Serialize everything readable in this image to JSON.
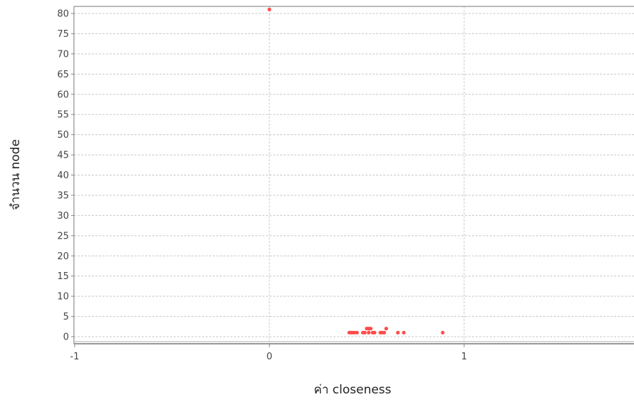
{
  "chart_data": {
    "type": "scatter",
    "title": "",
    "xlabel": "ค่า closeness",
    "ylabel": "จำนวน node",
    "xlim": [
      -1,
      1.85
    ],
    "ylim": [
      -1,
      82
    ],
    "x_ticks": [
      -1,
      0,
      1
    ],
    "x_tick_labels": [
      "-1",
      "0",
      "1"
    ],
    "y_ticks": [
      0,
      5,
      10,
      15,
      20,
      25,
      30,
      35,
      40,
      45,
      50,
      55,
      60,
      65,
      70,
      75,
      80
    ],
    "y_tick_labels": [
      "0",
      "5",
      "10",
      "15",
      "20",
      "25",
      "30",
      "35",
      "40",
      "45",
      "50",
      "55",
      "60",
      "65",
      "70",
      "75",
      "80"
    ],
    "grid": true,
    "legend": "none",
    "colors": {
      "points": "#ff4b4b",
      "grid": "#c8c8c8",
      "axis": "#888888",
      "frame": "#777777"
    },
    "series": [
      {
        "points": [
          {
            "x": 0.0,
            "y": 81
          },
          {
            "x": 0.41,
            "y": 1
          },
          {
            "x": 0.42,
            "y": 1
          },
          {
            "x": 0.43,
            "y": 1
          },
          {
            "x": 0.44,
            "y": 1
          },
          {
            "x": 0.45,
            "y": 1
          },
          {
            "x": 0.48,
            "y": 1
          },
          {
            "x": 0.49,
            "y": 1
          },
          {
            "x": 0.5,
            "y": 2
          },
          {
            "x": 0.51,
            "y": 2
          },
          {
            "x": 0.52,
            "y": 2
          },
          {
            "x": 0.51,
            "y": 1
          },
          {
            "x": 0.53,
            "y": 1
          },
          {
            "x": 0.54,
            "y": 1
          },
          {
            "x": 0.57,
            "y": 1
          },
          {
            "x": 0.58,
            "y": 1
          },
          {
            "x": 0.59,
            "y": 1
          },
          {
            "x": 0.6,
            "y": 2
          },
          {
            "x": 0.66,
            "y": 1
          },
          {
            "x": 0.69,
            "y": 1
          },
          {
            "x": 0.89,
            "y": 1
          }
        ]
      }
    ]
  }
}
